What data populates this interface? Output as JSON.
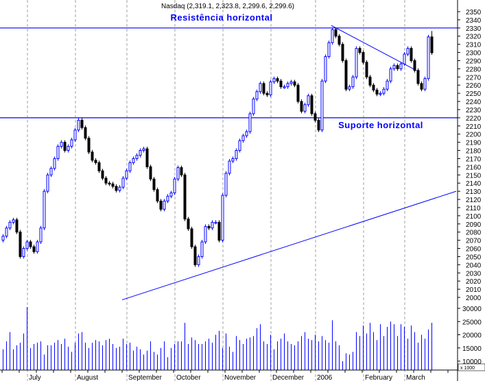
{
  "chart_data": {
    "type": "candlestick",
    "title": "Nasdaq (2,319.1, 2,323.8, 2,299.6, 2,299.6)",
    "colors": {
      "up": "#0000ff",
      "down": "#000000",
      "lines": "#0000ff",
      "volume": "#0000ff",
      "grid": "#a0a0a0"
    },
    "price_axis": {
      "range": [
        2000,
        2350
      ],
      "step": 10,
      "position": "right"
    },
    "volume_axis": {
      "ticks": [
        10000,
        15000,
        20000,
        25000,
        30000
      ],
      "unit_label": "x 1000"
    },
    "x_labels": [
      {
        "label": "July",
        "index": 8
      },
      {
        "label": "August",
        "index": 22
      },
      {
        "label": "September",
        "index": 37
      },
      {
        "label": "October",
        "index": 51
      },
      {
        "label": "November",
        "index": 65
      },
      {
        "label": "December",
        "index": 79
      },
      {
        "label": "2006",
        "index": 92
      },
      {
        "label": "February",
        "index": 106
      },
      {
        "label": "March",
        "index": 118
      }
    ],
    "first_open": 2070,
    "last_candle": {
      "open": 2319.1,
      "high": 2323.8,
      "low": 2299.6,
      "close": 2299.6
    },
    "closes": [
      2075,
      2085,
      2092,
      2095,
      2080,
      2050,
      2060,
      2068,
      2062,
      2056,
      2068,
      2085,
      2130,
      2150,
      2158,
      2170,
      2185,
      2190,
      2180,
      2185,
      2193,
      2205,
      2217,
      2208,
      2195,
      2178,
      2168,
      2165,
      2155,
      2146,
      2140,
      2139,
      2136,
      2131,
      2135,
      2146,
      2155,
      2165,
      2170,
      2174,
      2180,
      2182,
      2160,
      2145,
      2132,
      2118,
      2108,
      2118,
      2124,
      2128,
      2145,
      2159,
      2150,
      2096,
      2084,
      2062,
      2040,
      2050,
      2068,
      2087,
      2085,
      2092,
      2092,
      2070,
      2125,
      2152,
      2167,
      2170,
      2180,
      2192,
      2198,
      2203,
      2225,
      2243,
      2252,
      2262,
      2250,
      2248,
      2264,
      2268,
      2265,
      2258,
      2258,
      2262,
      2264,
      2260,
      2240,
      2228,
      2236,
      2247,
      2225,
      2217,
      2205,
      2265,
      2295,
      2312,
      2328,
      2320,
      2310,
      2290,
      2255,
      2258,
      2270,
      2305,
      2300,
      2288,
      2270,
      2260,
      2254,
      2249,
      2250,
      2255,
      2265,
      2280,
      2284,
      2280,
      2286,
      2298,
      2305,
      2290,
      2278,
      2262,
      2255,
      2268,
      2319.1,
      2299.6
    ],
    "volume": [
      14500,
      17500,
      21000,
      14500,
      16000,
      17000,
      20500,
      30500,
      15000,
      16500,
      17000,
      17500,
      12500,
      16000,
      16000,
      17000,
      18000,
      16500,
      18500,
      15500,
      13500,
      17000,
      20500,
      21000,
      17000,
      15000,
      17000,
      18000,
      17500,
      16000,
      18000,
      18500,
      16500,
      15000,
      15500,
      18500,
      16500,
      17000,
      14000,
      15500,
      14500,
      12500,
      14000,
      17500,
      13500,
      12500,
      15000,
      17500,
      11500,
      15000,
      16500,
      17500,
      17500,
      24500,
      16500,
      19000,
      18000,
      16500,
      16500,
      17500,
      18500,
      17000,
      20000,
      21500,
      15000,
      20500,
      15500,
      13500,
      19500,
      18000,
      16500,
      18500,
      19000,
      19500,
      22500,
      24000,
      17500,
      16500,
      20000,
      14500,
      17500,
      18500,
      20500,
      17500,
      16500,
      16000,
      17500,
      19500,
      21000,
      18500,
      18000,
      20000,
      17500,
      19500,
      18000,
      17000,
      25500,
      17500,
      16000,
      10000,
      13000,
      12500,
      13500,
      21000,
      19500,
      23500,
      20500,
      24500,
      21000,
      18000,
      24000,
      19500,
      23000,
      25000,
      24000,
      19500,
      24000,
      23000,
      18500,
      23500,
      21000,
      17000,
      20000,
      18500,
      22000,
      24500
    ],
    "lines": [
      {
        "label": "Resistência horizontal",
        "from": [
          0,
          2330
        ],
        "to": [
          133,
          2330
        ]
      },
      {
        "label": "Suporte horizontal",
        "from": [
          0,
          2220
        ],
        "to": [
          133,
          2220
        ]
      },
      {
        "label": "",
        "from": [
          96,
          2333
        ],
        "to": [
          120.8,
          2278
        ]
      },
      {
        "label": "",
        "from": [
          35,
          1997
        ],
        "to": [
          132.4,
          2130
        ]
      }
    ]
  }
}
